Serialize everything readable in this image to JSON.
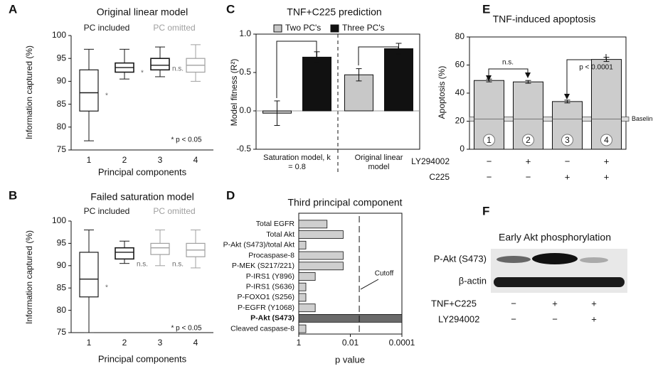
{
  "chart_data": [
    {
      "panel": "A",
      "type": "box",
      "title": "Original linear model",
      "xlabel": "Principal components",
      "ylabel": "Information captured (%)",
      "categories": [
        "1",
        "2",
        "3",
        "4"
      ],
      "series": [
        {
          "name": "PC included",
          "color": "#1a1a1a",
          "boxes": [
            {
              "min": 77,
              "q1": 83.5,
              "median": 87.5,
              "q3": 92.5,
              "max": 97
            },
            {
              "min": 90.5,
              "q1": 92,
              "median": 93,
              "q3": 94,
              "max": 97
            },
            {
              "min": 91,
              "q1": 92.5,
              "median": 93.5,
              "q3": 95,
              "max": 97.5
            },
            null
          ]
        },
        {
          "name": "PC omitted",
          "color": "#a0a0a0",
          "boxes": [
            null,
            null,
            null,
            {
              "min": 90,
              "q1": 92,
              "median": 93.5,
              "q3": 95,
              "max": 98
            }
          ]
        }
      ],
      "ylim": [
        75,
        100
      ],
      "yticks": [
        75,
        80,
        85,
        90,
        95,
        100
      ],
      "annotations": [
        "*",
        "*",
        "n.s."
      ],
      "note": "* p < 0.05"
    },
    {
      "panel": "B",
      "type": "box",
      "title": "Failed saturation model",
      "xlabel": "Principal components",
      "ylabel": "Information captured (%)",
      "categories": [
        "1",
        "2",
        "3",
        "4"
      ],
      "series": [
        {
          "name": "PC included",
          "color": "#1a1a1a",
          "boxes": [
            {
              "min": 75,
              "q1": 83,
              "median": 87,
              "q3": 93,
              "max": 98
            },
            {
              "min": 90.5,
              "q1": 91.5,
              "median": 93,
              "q3": 94,
              "max": 95.5
            },
            null,
            null
          ]
        },
        {
          "name": "PC omitted",
          "color": "#a0a0a0",
          "boxes": [
            null,
            null,
            {
              "min": 90,
              "q1": 92.5,
              "median": 94,
              "q3": 95,
              "max": 98
            },
            {
              "min": 89.5,
              "q1": 92,
              "median": 93.5,
              "q3": 95,
              "max": 98
            }
          ]
        }
      ],
      "ylim": [
        75,
        100
      ],
      "yticks": [
        75,
        80,
        85,
        90,
        95,
        100
      ],
      "annotations": [
        "*",
        "n.s.",
        "n.s."
      ],
      "note": "* p < 0.05"
    },
    {
      "panel": "C",
      "type": "groupbar",
      "title": "TNF+C225 prediction",
      "ylabel": "Model fitness (R²)",
      "categories": [
        "Saturation model, k = 0.8",
        "Original linear model"
      ],
      "series": [
        {
          "name": "Two PC's",
          "color": "#c8c8c8",
          "values": [
            -0.03,
            0.47
          ],
          "errors": [
            0.16,
            0.08
          ]
        },
        {
          "name": "Three PC's",
          "color": "#111111",
          "values": [
            0.7,
            0.81
          ],
          "errors": [
            0.07,
            0.07
          ]
        }
      ],
      "ylim": [
        -0.5,
        1
      ],
      "yticks": [
        -0.5,
        {
          "value": 0,
          "label": "0.0"
        },
        0.5,
        {
          "value": 1,
          "label": "1.0"
        }
      ]
    },
    {
      "panel": "D",
      "type": "hbar",
      "title": "Third principal component",
      "xlabel": "p value",
      "log_x": true,
      "categories": [
        "Total EGFR",
        "Total Akt",
        "P-Akt (S473)/total Akt",
        "Procaspase-8",
        "P-MEK (S217/221)",
        "P-IRS1 (Y896)",
        "P-IRS1 (S636)",
        "P-FOXO1 (S256)",
        "P-EGFR (Y1068)",
        "P-Akt (S473)",
        "Cleaved caspase-8"
      ],
      "values": [
        0.08,
        0.019,
        0.53,
        0.019,
        0.019,
        0.23,
        0.53,
        0.53,
        0.23,
        0.0001,
        0.53
      ],
      "colors": [
        "#cfcfcf",
        "#cfcfcf",
        "#cfcfcf",
        "#cfcfcf",
        "#cfcfcf",
        "#cfcfcf",
        "#cfcfcf",
        "#cfcfcf",
        "#cfcfcf",
        "#6a6a6a",
        "#cfcfcf"
      ],
      "bold": [
        false,
        false,
        false,
        false,
        false,
        false,
        false,
        false,
        false,
        true,
        false
      ],
      "xlim": [
        1,
        0.0001
      ],
      "xticks": [
        1,
        0.01,
        0.0001
      ],
      "cutoff": {
        "value": 0.0045,
        "label": "Cutoff"
      }
    },
    {
      "panel": "E",
      "type": "bar",
      "title": "TNF-induced apoptosis",
      "ylabel": "Apoptosis (%)",
      "categories": [
        "1",
        "2",
        "3",
        "4"
      ],
      "values": [
        49,
        48,
        34,
        64
      ],
      "errors": [
        1,
        1,
        1,
        1.5
      ],
      "color": "#cccccc",
      "ylim": [
        0,
        80
      ],
      "yticks": [
        0,
        20,
        40,
        60,
        80
      ],
      "baseline": {
        "value": 21.5,
        "label": "Baseline"
      },
      "annotations": [
        "n.s.",
        "p < 0.0001"
      ],
      "conditions": [
        {
          "name": "LY294002",
          "values": [
            "−",
            "+",
            "−",
            "+"
          ]
        },
        {
          "name": "C225",
          "values": [
            "−",
            "−",
            "+",
            "+"
          ]
        }
      ]
    },
    {
      "panel": "F",
      "type": "blot",
      "title": "Early Akt phosphorylation",
      "bands": [
        "P-Akt (S473)",
        "β-actin"
      ],
      "conditions": [
        {
          "name": "TNF+C225",
          "values": [
            "−",
            "+",
            "+"
          ]
        },
        {
          "name": "LY294002",
          "values": [
            "−",
            "−",
            "+"
          ]
        }
      ]
    }
  ]
}
